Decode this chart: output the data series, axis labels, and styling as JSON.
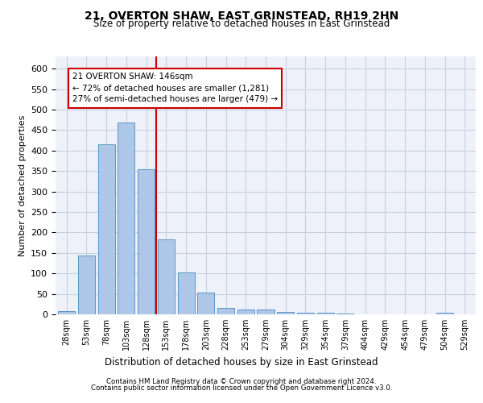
{
  "title1": "21, OVERTON SHAW, EAST GRINSTEAD, RH19 2HN",
  "title2": "Size of property relative to detached houses in East Grinstead",
  "xlabel": "Distribution of detached houses by size in East Grinstead",
  "ylabel": "Number of detached properties",
  "categories": [
    "28sqm",
    "53sqm",
    "78sqm",
    "103sqm",
    "128sqm",
    "153sqm",
    "178sqm",
    "203sqm",
    "228sqm",
    "253sqm",
    "279sqm",
    "304sqm",
    "329sqm",
    "354sqm",
    "379sqm",
    "404sqm",
    "429sqm",
    "454sqm",
    "479sqm",
    "504sqm",
    "529sqm"
  ],
  "values": [
    8,
    143,
    416,
    468,
    354,
    184,
    102,
    53,
    15,
    12,
    12,
    5,
    3,
    3,
    2,
    0,
    0,
    0,
    0,
    3,
    0
  ],
  "bar_color": "#aec6e8",
  "bar_edge_color": "#5a96c8",
  "property_line_x": 4.5,
  "annotation_text": "21 OVERTON SHAW: 146sqm\n← 72% of detached houses are smaller (1,281)\n27% of semi-detached houses are larger (479) →",
  "annotation_box_color": "#ffffff",
  "annotation_box_edge": "#cc0000",
  "vline_color": "#cc0000",
  "ylim": [
    0,
    630
  ],
  "yticks": [
    0,
    50,
    100,
    150,
    200,
    250,
    300,
    350,
    400,
    450,
    500,
    550,
    600
  ],
  "footer1": "Contains HM Land Registry data © Crown copyright and database right 2024.",
  "footer2": "Contains public sector information licensed under the Open Government Licence v3.0.",
  "background_color": "#eef1fa",
  "grid_color": "#c8d0e0"
}
